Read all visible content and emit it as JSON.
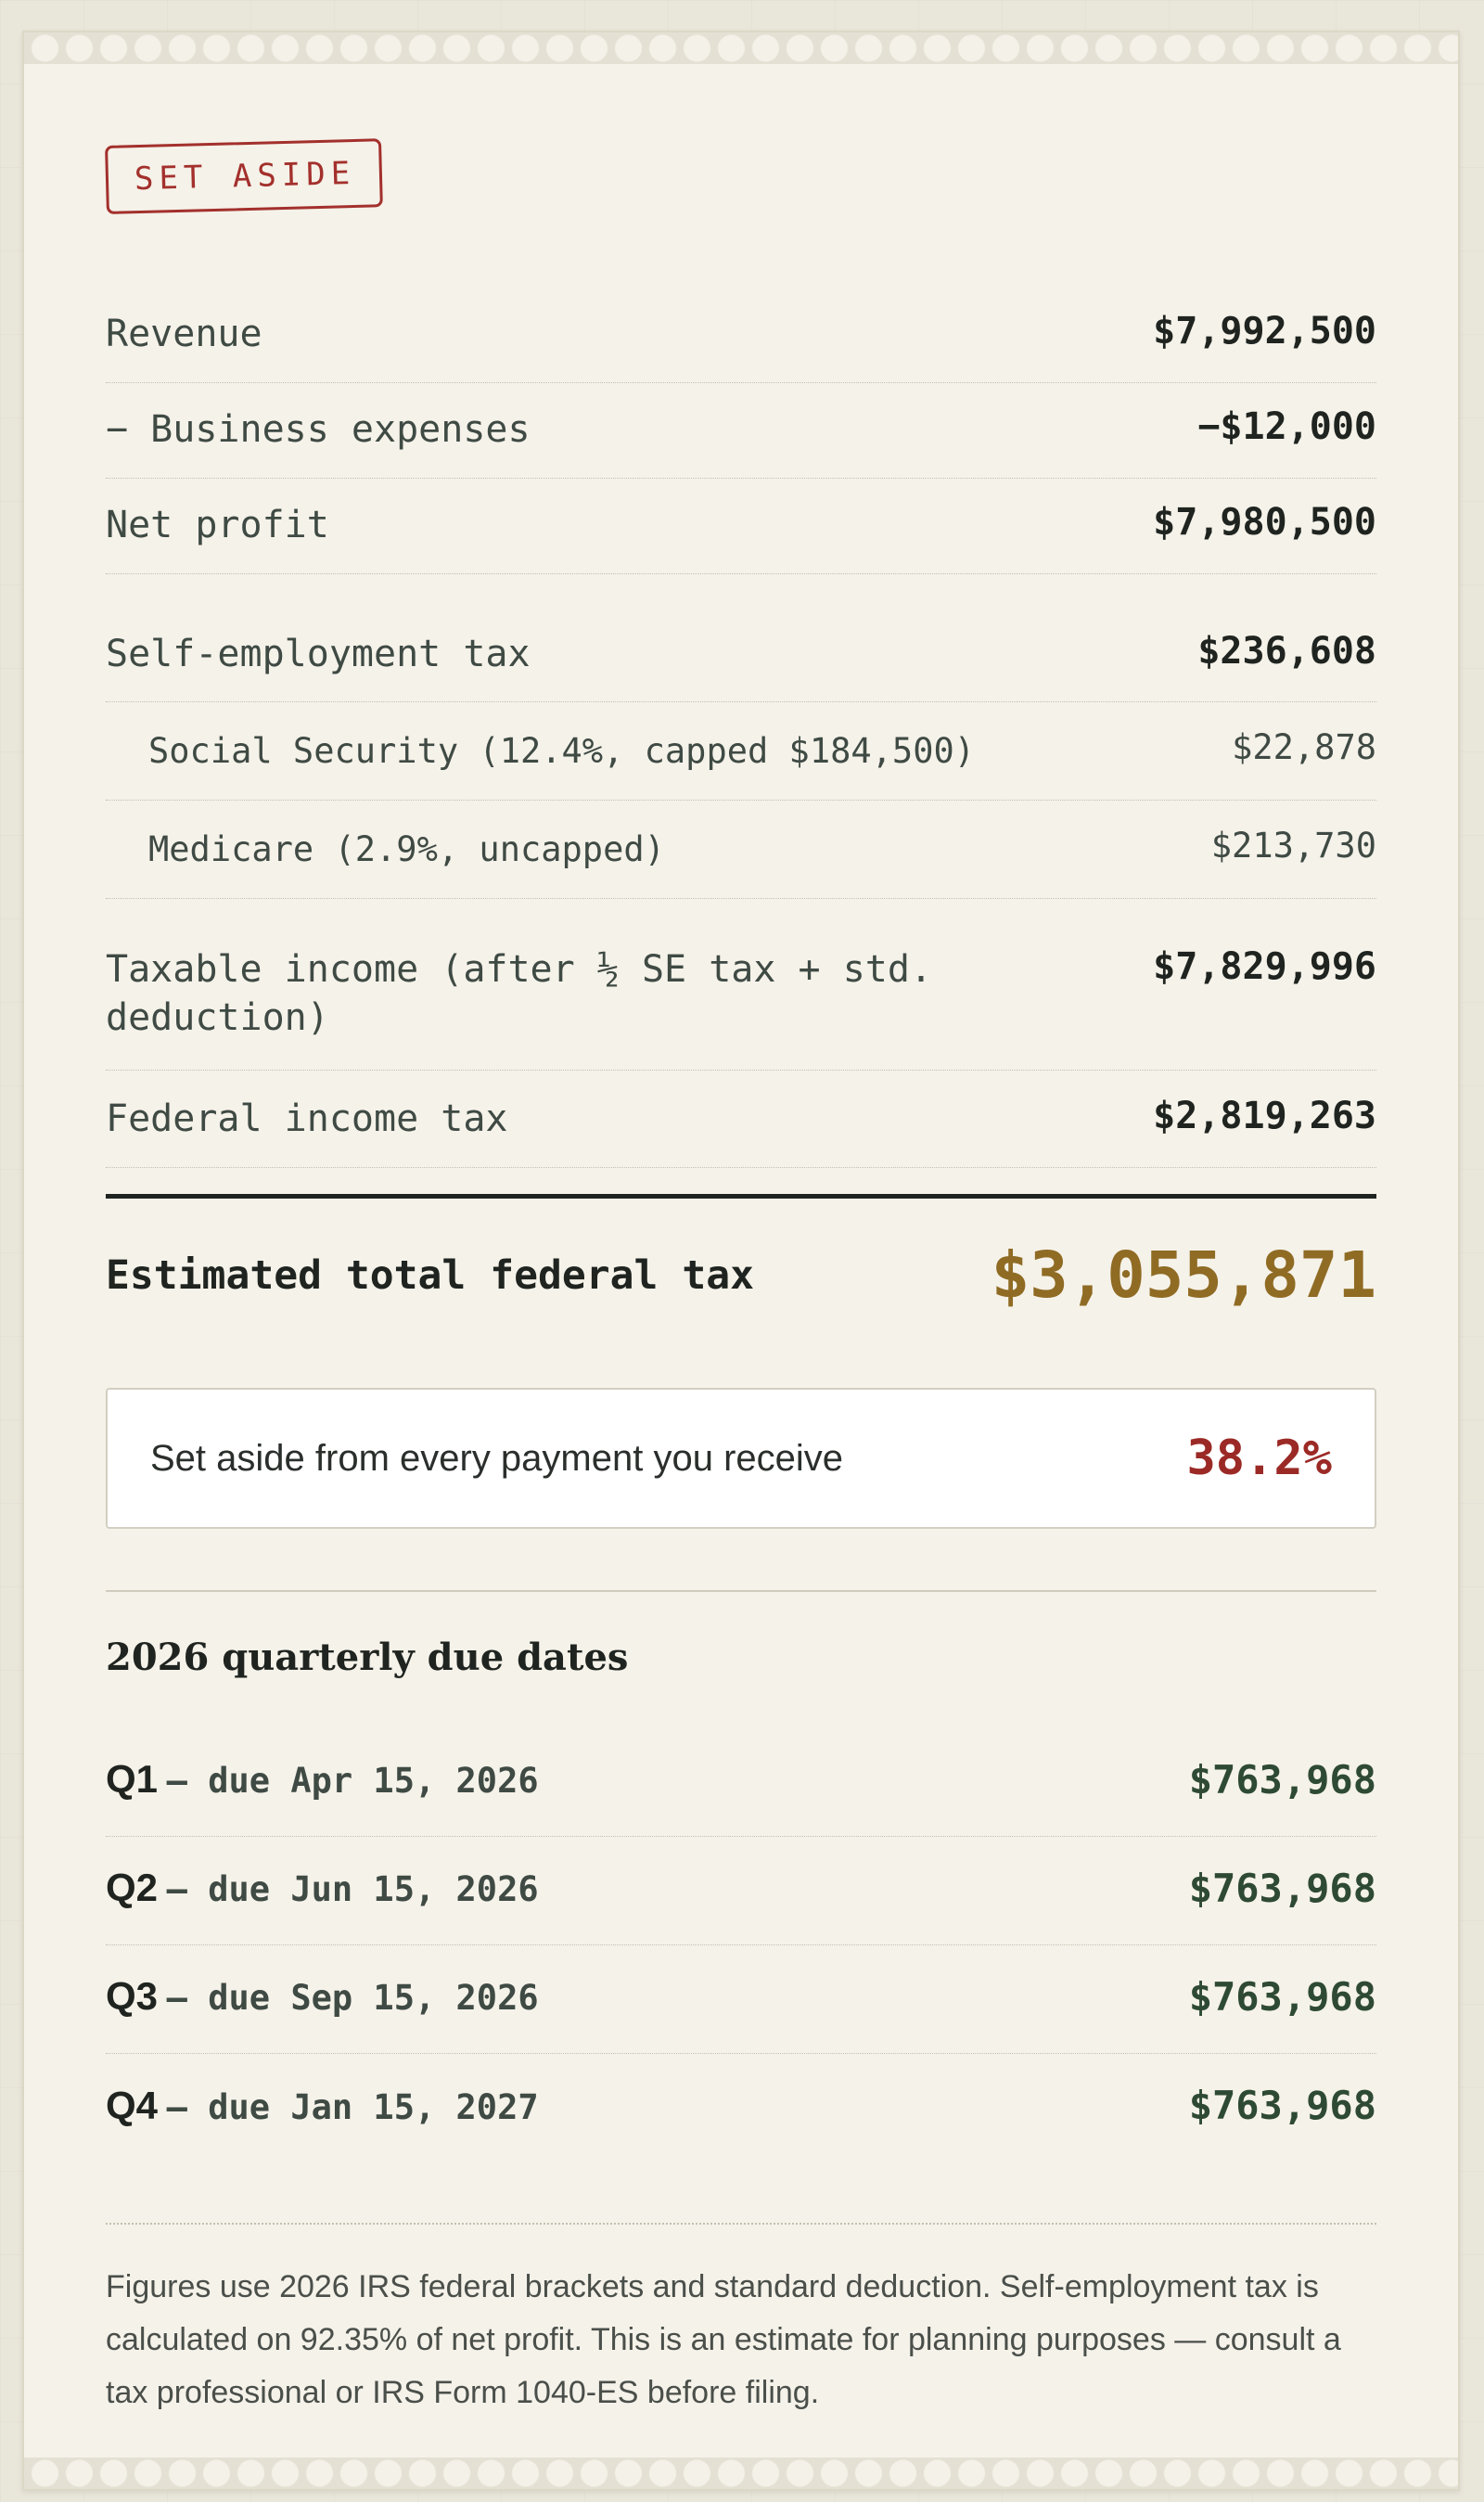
{
  "stamp": "SET ASIDE",
  "rows": [
    {
      "label": "Revenue",
      "amount": "$7,992,500"
    },
    {
      "label": "− Business expenses",
      "amount": "−$12,000"
    },
    {
      "label": "Net profit",
      "amount": "$7,980,500"
    },
    {
      "label": "Self-employment tax",
      "amount": "$236,608"
    },
    {
      "label": "Social Security (12.4%, capped $184,500)",
      "amount": "$22,878"
    },
    {
      "label": "Medicare (2.9%, uncapped)",
      "amount": "$213,730"
    },
    {
      "label": "Taxable income (after ½ SE tax + std. deduction)",
      "amount": "$7,829,996"
    },
    {
      "label": "Federal income tax",
      "amount": "$2,819,263"
    }
  ],
  "total": {
    "label": "Estimated total federal tax",
    "amount": "$3,055,871"
  },
  "set_aside": {
    "label": "Set aside from every payment you receive",
    "percent": "38.2%"
  },
  "quarterly": {
    "title": "2026 quarterly due dates",
    "items": [
      {
        "quarter": "Q1",
        "due": "— due Apr 15, 2026",
        "amount": "$763,968"
      },
      {
        "quarter": "Q2",
        "due": "— due Jun 15, 2026",
        "amount": "$763,968"
      },
      {
        "quarter": "Q3",
        "due": "— due Sep 15, 2026",
        "amount": "$763,968"
      },
      {
        "quarter": "Q4",
        "due": "— due Jan 15, 2027",
        "amount": "$763,968"
      }
    ]
  },
  "footnote": "Figures use 2026 IRS federal brackets and standard deduction. Self-employment tax is calculated on 92.35% of net profit. This is an estimate for planning purposes — consult a tax professional or IRS Form 1040-ES before filing.",
  "colors": {
    "total_amount": "#8f6b24",
    "set_aside_percent": "#9b2a26",
    "quarter_amount": "#2e4a34",
    "stamp": "#a3302c"
  }
}
